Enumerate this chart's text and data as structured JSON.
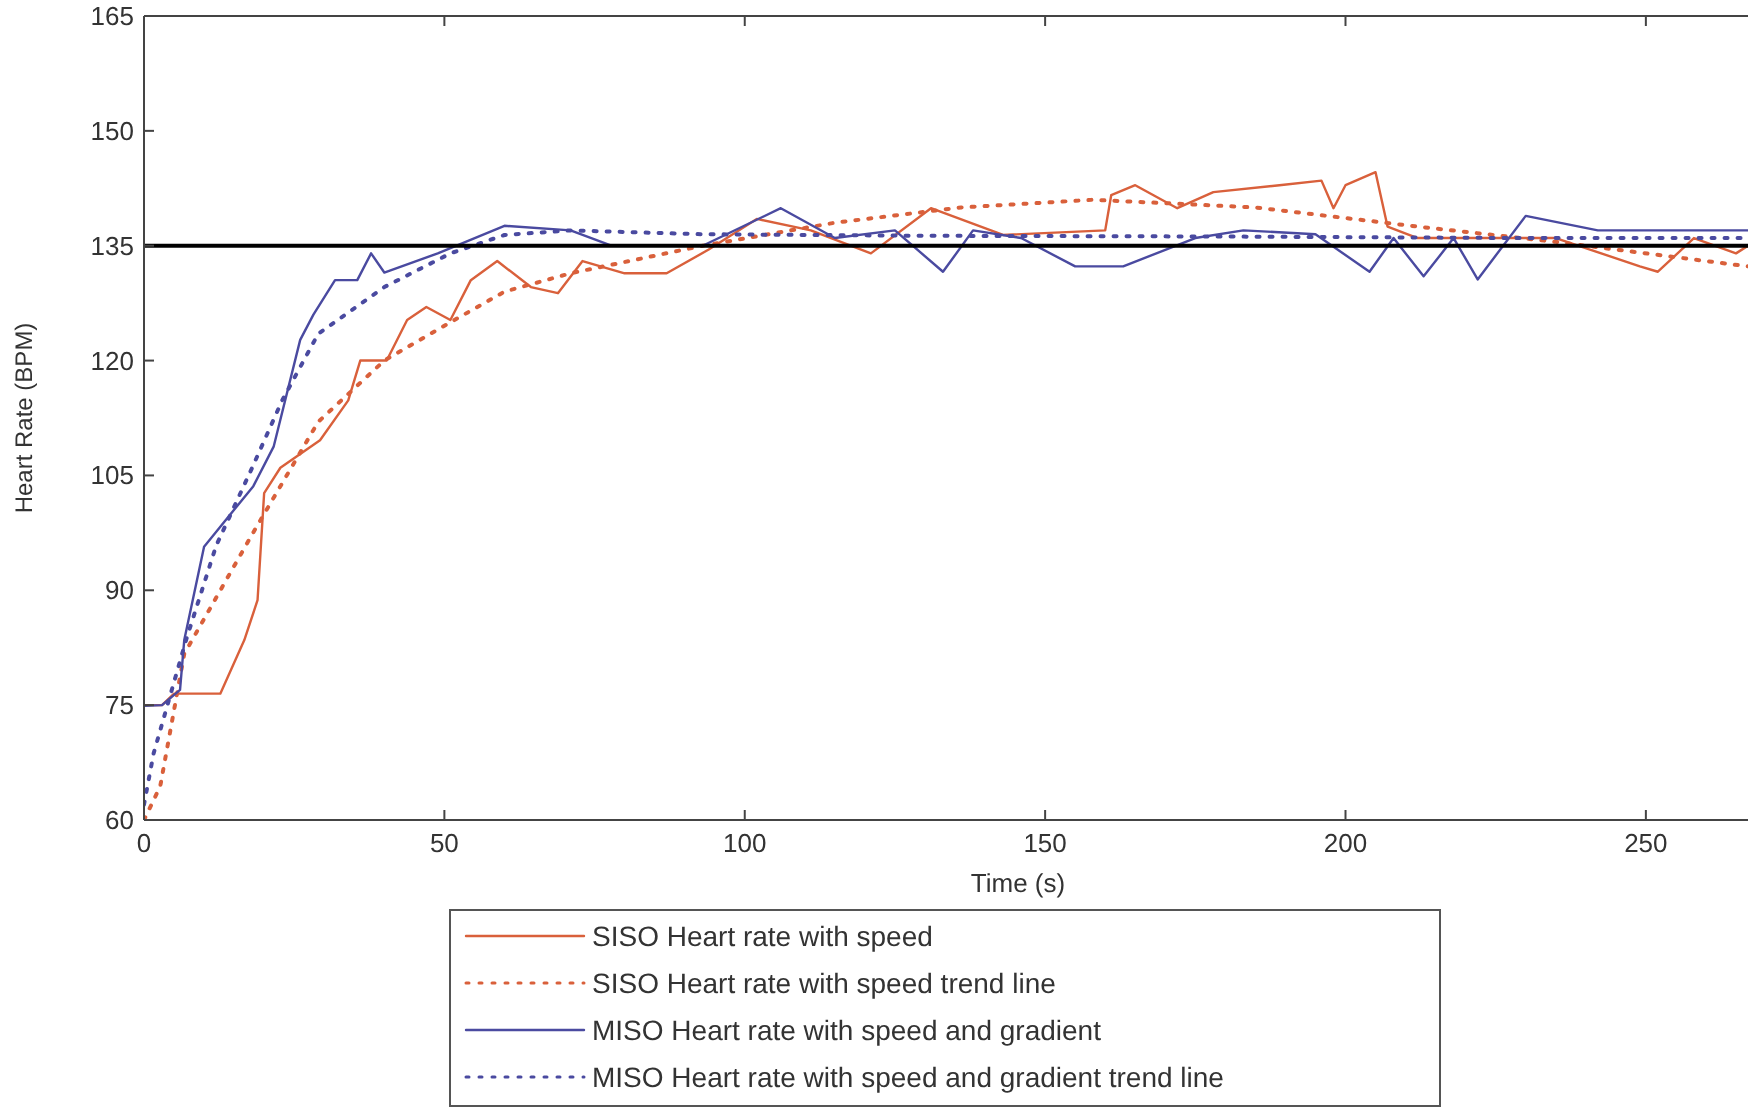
{
  "chart_data": {
    "type": "line",
    "xlabel": "Time (s)",
    "ylabel": "Heart Rate (BPM)",
    "xlim": [
      0,
      267
    ],
    "ylim": [
      60,
      165
    ],
    "xticks": [
      0,
      50,
      100,
      150,
      200,
      250
    ],
    "yticks": [
      60,
      75,
      90,
      105,
      120,
      135,
      150,
      165
    ],
    "grid": false,
    "legend": "bottom",
    "ref_lines": [
      {
        "axis": "y",
        "value": 135,
        "color": "#000000"
      }
    ],
    "series": [
      {
        "name": "SISO Heart rate with speed",
        "color": "#d9603b",
        "line_style": "solid",
        "x": [
          0,
          3,
          5,
          12.7,
          16.7,
          18.9,
          20,
          22.7,
          29.3,
          34,
          36,
          40.4,
          43.8,
          47,
          51,
          54.4,
          58.8,
          64.4,
          68.9,
          73,
          80,
          87,
          94,
          102,
          111,
          121,
          131,
          143,
          160,
          161,
          165,
          172,
          178,
          189,
          196,
          198,
          200,
          205,
          207,
          212,
          224,
          235,
          249,
          252,
          258,
          265,
          267
        ],
        "values": [
          75,
          75,
          76.5,
          76.5,
          83.5,
          88.7,
          102.7,
          106,
          109.6,
          114.8,
          120,
          120,
          125.3,
          127,
          125.3,
          130.5,
          133,
          129.6,
          128.8,
          133,
          131.4,
          131.4,
          134.5,
          138.5,
          137,
          134,
          139.9,
          136.4,
          137,
          141.6,
          142.9,
          139.9,
          142,
          142.9,
          143.5,
          139.9,
          142.9,
          144.6,
          137.5,
          136,
          136,
          136,
          132.3,
          131.6,
          136,
          134,
          135
        ]
      },
      {
        "name": "SISO Heart rate with speed trend line",
        "color": "#d9603b",
        "line_style": "dotted",
        "x": [
          0,
          2.7,
          6.7,
          18,
          29,
          40,
          51,
          60,
          71,
          93,
          115,
          136,
          158,
          185,
          212,
          235,
          267
        ],
        "values": [
          60,
          64.4,
          81.7,
          97.3,
          112,
          120,
          125,
          129,
          131.4,
          135,
          138,
          140,
          141,
          140,
          137.5,
          135.5,
          132.3
        ]
      },
      {
        "name": "MISO Heart rate with speed and gradient",
        "color": "#4a4aa0",
        "line_style": "solid",
        "x": [
          0,
          3,
          6,
          6.7,
          10,
          18.2,
          21.6,
          26,
          28.2,
          31.8,
          35.5,
          37.8,
          40,
          48.9,
          60,
          71,
          77.8,
          93,
          106,
          115,
          125,
          133,
          138,
          146,
          155,
          163,
          175,
          183,
          195,
          204,
          208,
          213,
          218,
          222,
          230,
          242,
          255,
          267
        ],
        "values": [
          74.9,
          75,
          77,
          83.5,
          95.7,
          103.6,
          108.8,
          122.7,
          126,
          130.5,
          130.5,
          134,
          131.5,
          134,
          137.6,
          137,
          135,
          135,
          139.9,
          136,
          137,
          131.6,
          137,
          136,
          132.3,
          132.3,
          136,
          137,
          136.5,
          131.6,
          136,
          131,
          136,
          130.6,
          138.9,
          137,
          137,
          137
        ]
      },
      {
        "name": "MISO Heart rate with speed and gradient trend line",
        "color": "#4a4aa0",
        "line_style": "dotted",
        "x": [
          0,
          1.6,
          7,
          12,
          18,
          23,
          29,
          40,
          51,
          60,
          71,
          93,
          130,
          180,
          230,
          267
        ],
        "values": [
          62,
          68.7,
          83.5,
          95.8,
          106,
          114.8,
          123.5,
          129.6,
          134,
          136.4,
          137,
          136.5,
          136.3,
          136.2,
          136,
          136
        ]
      }
    ]
  }
}
